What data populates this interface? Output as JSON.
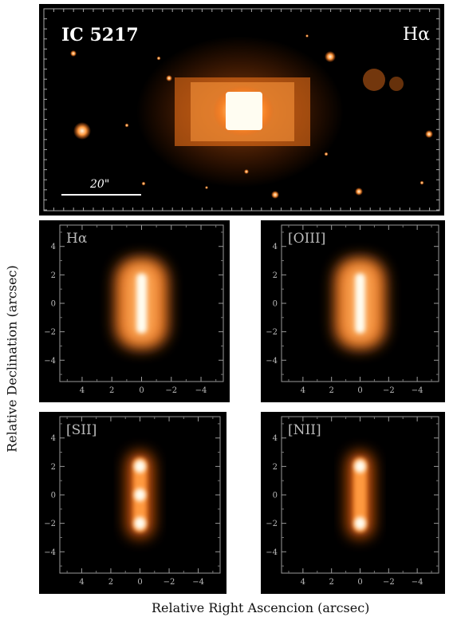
{
  "top": {
    "object": "IC 5217",
    "line": "Hα",
    "scale": "20\""
  },
  "axis_titles": {
    "ylabel": "Relative Declination (arcsec)",
    "xlabel": "Relative Right Ascencion (arcsec)"
  },
  "ticks": {
    "x": [
      "4",
      "2",
      "0",
      "−2",
      "−4"
    ],
    "y": [
      "4",
      "2",
      "0",
      "−2",
      "−4"
    ]
  },
  "panels": [
    {
      "label": "Hα"
    },
    {
      "label": "[OIII]"
    },
    {
      "label": "[SII]"
    },
    {
      "label": "[NII]"
    }
  ],
  "colors": {
    "glow": "#ff8a2a",
    "core": "#fffce8",
    "background": "#000000"
  }
}
